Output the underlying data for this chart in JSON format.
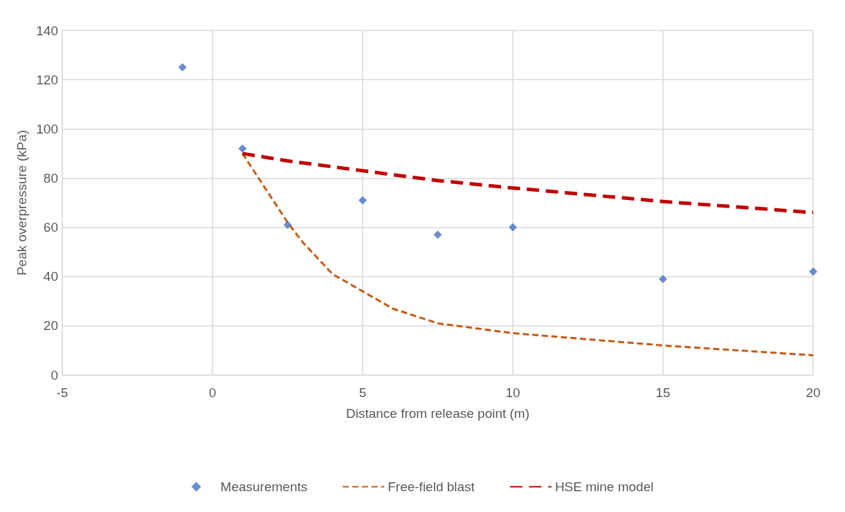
{
  "chart_data": {
    "type": "scatter",
    "xlabel": "Distance from release point (m)",
    "ylabel": "Peak overpressure (kPa)",
    "xlim": [
      -5,
      20
    ],
    "xticks": [
      -5,
      0,
      5,
      10,
      15,
      20
    ],
    "ylim": [
      0,
      140
    ],
    "yticks": [
      0,
      20,
      40,
      60,
      80,
      100,
      120,
      140
    ],
    "grid": true,
    "legend": "bottom",
    "series": [
      {
        "name": "Measurements",
        "marker": "diamond",
        "color": "#4472c4",
        "x": [
          -1,
          1,
          2.5,
          5,
          7.5,
          10,
          15,
          20
        ],
        "values": [
          125,
          92,
          61,
          71,
          57,
          60,
          39,
          42
        ]
      },
      {
        "name": "Free-field blast",
        "type": "line",
        "marker": "none",
        "line_style": "dashed",
        "color": "#c55a11",
        "x": [
          1,
          2.5,
          3,
          4,
          5,
          6,
          7.5,
          10,
          15,
          20
        ],
        "values": [
          90,
          62,
          54,
          41,
          34,
          27,
          21,
          17,
          12,
          8
        ]
      },
      {
        "name": "HSE mine model",
        "type": "line",
        "marker": "none",
        "line_style": "dashed",
        "color": "#c00000",
        "x": [
          1,
          2.5,
          5,
          7.5,
          10,
          15,
          20
        ],
        "values": [
          90,
          87,
          83,
          79,
          76,
          70.5,
          66
        ]
      }
    ]
  }
}
